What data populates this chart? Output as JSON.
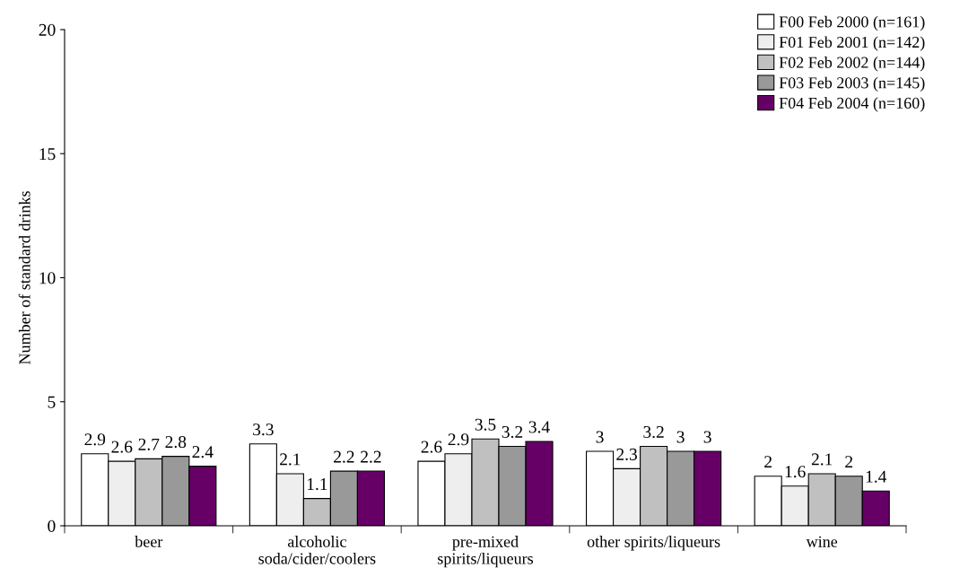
{
  "chart_data": {
    "type": "bar",
    "ylabel": "Number of standard drinks",
    "categories": [
      "beer",
      "alcoholic\nsoda/cider/coolers",
      "pre-mixed\nspirits/liqueurs",
      "other spirits/liqueurs",
      "wine"
    ],
    "series": [
      {
        "name": "F00 Feb 2000 (n=161)",
        "color": "#ffffff",
        "values": [
          2.9,
          3.3,
          2.6,
          3,
          2
        ]
      },
      {
        "name": "F01 Feb 2001 (n=142)",
        "color": "#eeeeee",
        "values": [
          2.6,
          2.1,
          2.9,
          2.3,
          1.6
        ]
      },
      {
        "name": "F02 Feb 2002 (n=144)",
        "color": "#c0c0c0",
        "values": [
          2.7,
          1.1,
          3.5,
          3.2,
          2.1
        ]
      },
      {
        "name": "F03 Feb 2003 (n=145)",
        "color": "#999999",
        "values": [
          2.8,
          2.2,
          3.2,
          3,
          2
        ]
      },
      {
        "name": "F04 Feb 2004 (n=160)",
        "color": "#660066",
        "values": [
          2.4,
          2.2,
          3.4,
          3,
          1.4
        ]
      }
    ],
    "ylim": [
      0,
      20
    ],
    "yticks": [
      0,
      5,
      10,
      15,
      20
    ],
    "data_labels": true,
    "grid": false,
    "legend": "top right"
  }
}
